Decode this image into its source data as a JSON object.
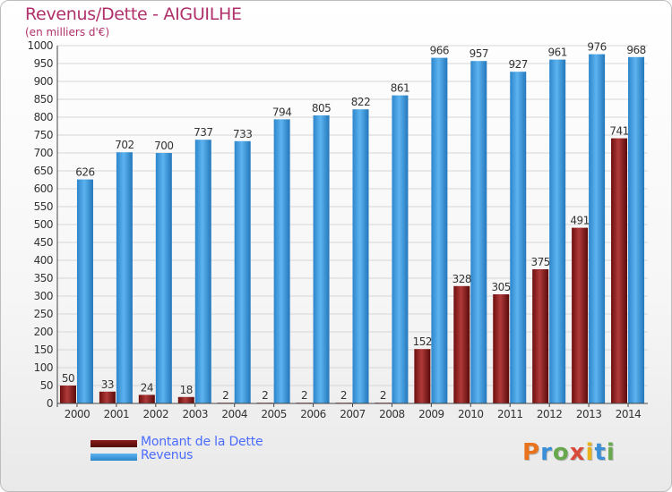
{
  "title": "Revenus/Dette - AIGUILHE",
  "unit_label": "(en milliers d'€)",
  "colors": {
    "dette": "#8b1a1a",
    "revenus": "#3f9be0",
    "title": "#b0306a",
    "legend_text": "#4b6bff"
  },
  "chart_data": {
    "type": "bar",
    "title": "Revenus/Dette - AIGUILHE",
    "ylabel": "(en milliers d'€)",
    "xlabel": "",
    "ylim": [
      0,
      1000
    ],
    "yticks": [
      0,
      50,
      100,
      150,
      200,
      250,
      300,
      350,
      400,
      450,
      500,
      550,
      600,
      650,
      700,
      750,
      800,
      850,
      900,
      950,
      1000
    ],
    "categories": [
      "2000",
      "2001",
      "2002",
      "2003",
      "2004",
      "2005",
      "2006",
      "2007",
      "2008",
      "2009",
      "2010",
      "2011",
      "2012",
      "2013",
      "2014"
    ],
    "series": [
      {
        "name": "Montant de la Dette",
        "values": [
          50,
          33,
          24,
          18,
          2,
          2,
          2,
          2,
          2,
          152,
          328,
          305,
          375,
          491,
          741
        ]
      },
      {
        "name": "Revenus",
        "values": [
          626,
          702,
          700,
          737,
          733,
          794,
          805,
          822,
          861,
          966,
          957,
          927,
          961,
          976,
          968
        ]
      }
    ],
    "grid": true,
    "legend": "bottom-left"
  },
  "legend": {
    "items": [
      {
        "label": "Montant de la Dette"
      },
      {
        "label": "Revenus"
      }
    ]
  },
  "logo": {
    "text": "Proxiti"
  }
}
